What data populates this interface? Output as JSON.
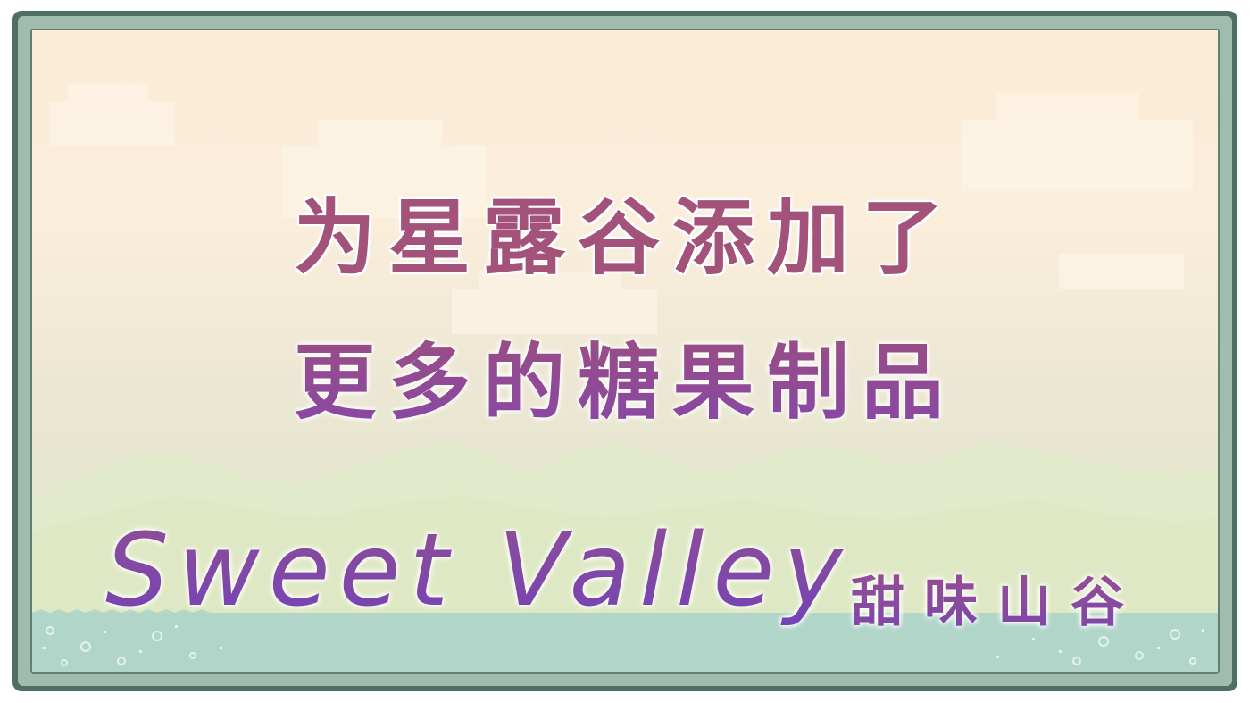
{
  "banner": {
    "headline_line1": "为星露谷添加了",
    "headline_line2": "更多的糖果制品",
    "mod_name_en": "Sweet Valley",
    "mod_name_cn": "甜味山谷"
  },
  "colors": {
    "frame_dark": "#4f6f64",
    "frame_light": "#9fbcae",
    "sky_top": "#fcebd6",
    "hills": "#dfe8c8",
    "water": "#b7d7c7",
    "headline_pink": "#a3527a",
    "title_purple": "#7342b6"
  }
}
